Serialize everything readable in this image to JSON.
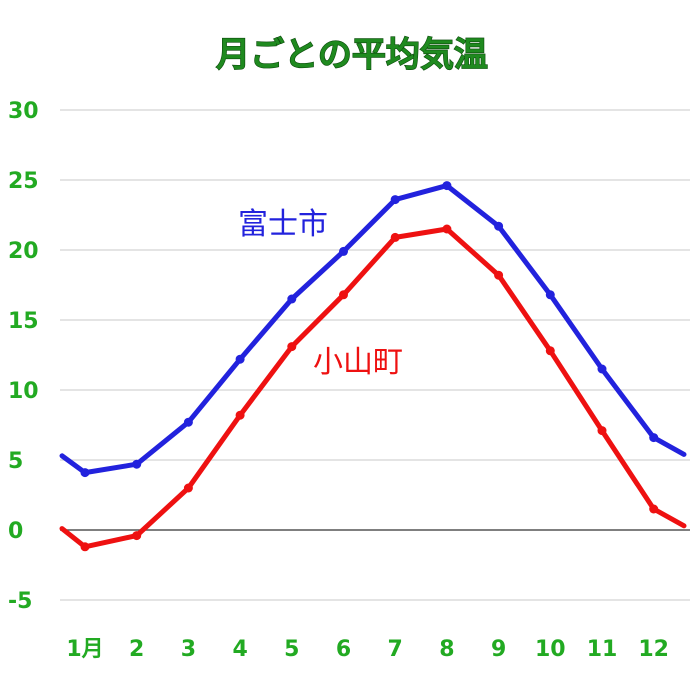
{
  "chart_data": {
    "type": "line",
    "title": "月ごとの平均気温",
    "categories": [
      "1月",
      "2",
      "3",
      "4",
      "5",
      "6",
      "7",
      "8",
      "9",
      "10",
      "11",
      "12"
    ],
    "ylim": [
      -5,
      30
    ],
    "yticks": [
      -5,
      0,
      5,
      10,
      15,
      20,
      25,
      30
    ],
    "grid": true,
    "series": [
      {
        "name": "富士市",
        "color": "#2222dd",
        "start": 5.3,
        "values": [
          4.1,
          4.7,
          7.7,
          12.2,
          16.5,
          19.9,
          23.6,
          24.6,
          21.7,
          16.8,
          11.5,
          6.6
        ],
        "end": 5.4
      },
      {
        "name": "小山町",
        "color": "#ee1111",
        "start": 0.1,
        "values": [
          -1.2,
          -0.4,
          3.0,
          8.2,
          13.1,
          16.8,
          20.9,
          21.5,
          18.2,
          12.8,
          7.1,
          1.5
        ],
        "end": 0.3
      }
    ],
    "zero_line_color": "#555555"
  }
}
